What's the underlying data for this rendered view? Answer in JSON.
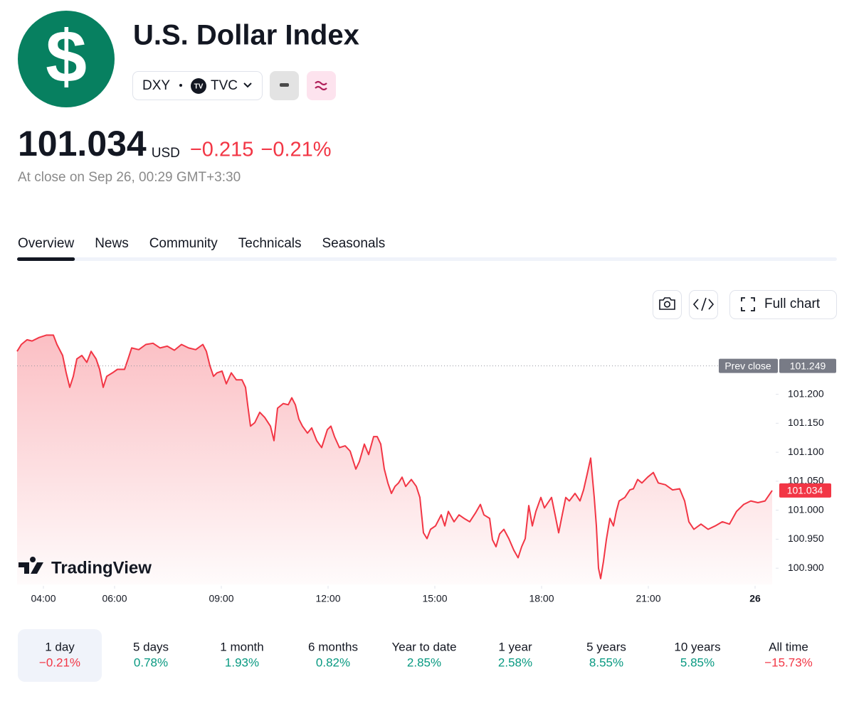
{
  "header": {
    "logo": "$",
    "title": "U.S. Dollar Index",
    "symbol": "DXY",
    "exchange": "TVC"
  },
  "quote": {
    "price": "101.034",
    "currency": "USD",
    "change": "−0.215",
    "change_percent": "−0.21%",
    "status": "At close on Sep 26, 00:29 GMT+3:30"
  },
  "tabs": [
    "Overview",
    "News",
    "Community",
    "Technicals",
    "Seasonals"
  ],
  "active_tab": 0,
  "toolbar": {
    "full_chart": "Full chart"
  },
  "chart_data": {
    "type": "line",
    "color": "#f23645",
    "watermark": "TradingView",
    "prev_close_label": "Prev close",
    "prev_close": 101.249,
    "xlim": [
      3.26,
      24.54
    ],
    "ylim": [
      100.872,
      101.316
    ],
    "xticks": [
      {
        "value": 4,
        "label": "04:00"
      },
      {
        "value": 6,
        "label": "06:00"
      },
      {
        "value": 9,
        "label": "09:00"
      },
      {
        "value": 12,
        "label": "12:00"
      },
      {
        "value": 15,
        "label": "15:00"
      },
      {
        "value": 18,
        "label": "18:00"
      },
      {
        "value": 21,
        "label": "21:00"
      },
      {
        "value": 24,
        "label": "26"
      }
    ],
    "yticks": [
      {
        "value": 101.2,
        "label": "101.200"
      },
      {
        "value": 101.15,
        "label": "101.150"
      },
      {
        "value": 101.1,
        "label": "101.100"
      },
      {
        "value": 101.05,
        "label": "101.050"
      },
      {
        "value": 101.0,
        "label": "101.000"
      },
      {
        "value": 100.95,
        "label": "100.950"
      },
      {
        "value": 100.9,
        "label": "100.900"
      }
    ],
    "x": [
      3.26,
      3.38,
      3.54,
      3.68,
      3.88,
      4.08,
      4.28,
      4.38,
      4.54,
      4.64,
      4.74,
      4.84,
      4.94,
      5.08,
      5.22,
      5.34,
      5.48,
      5.58,
      5.68,
      5.78,
      5.94,
      6.08,
      6.28,
      6.38,
      6.48,
      6.68,
      6.88,
      7.08,
      7.28,
      7.48,
      7.68,
      7.88,
      8.08,
      8.28,
      8.48,
      8.58,
      8.68,
      8.78,
      8.88,
      9.02,
      9.14,
      9.28,
      9.42,
      9.58,
      9.68,
      9.74,
      9.82,
      9.94,
      10.08,
      10.22,
      10.38,
      10.48,
      10.58,
      10.74,
      10.88,
      10.98,
      11.08,
      11.18,
      11.28,
      11.42,
      11.54,
      11.68,
      11.82,
      11.98,
      12.08,
      12.18,
      12.32,
      12.48,
      12.62,
      12.78,
      12.88,
      13.02,
      13.14,
      13.28,
      13.38,
      13.48,
      13.58,
      13.68,
      13.78,
      13.88,
      13.98,
      14.08,
      14.18,
      14.34,
      14.48,
      14.58,
      14.68,
      14.78,
      14.88,
      15.02,
      15.18,
      15.28,
      15.38,
      15.54,
      15.68,
      15.82,
      15.98,
      16.14,
      16.28,
      16.38,
      16.54,
      16.62,
      16.72,
      16.82,
      16.94,
      17.08,
      17.22,
      17.34,
      17.44,
      17.54,
      17.64,
      17.74,
      17.84,
      17.98,
      18.08,
      18.18,
      18.28,
      18.38,
      18.48,
      18.58,
      18.68,
      18.78,
      18.94,
      19.08,
      19.18,
      19.28,
      19.38,
      19.48,
      19.54,
      19.6,
      19.66,
      19.74,
      19.82,
      19.92,
      20.02,
      20.1,
      20.18,
      20.34,
      20.48,
      20.58,
      20.7,
      20.82,
      20.98,
      21.14,
      21.28,
      21.48,
      21.68,
      21.88,
      22.02,
      22.14,
      22.28,
      22.48,
      22.68,
      22.88,
      23.08,
      23.28,
      23.48,
      23.68,
      23.88,
      24.08,
      24.28,
      24.48
    ],
    "values": [
      101.274,
      101.286,
      101.294,
      101.292,
      101.298,
      101.302,
      101.302,
      101.286,
      101.267,
      101.237,
      101.212,
      101.231,
      101.261,
      101.267,
      101.255,
      101.274,
      101.261,
      101.243,
      101.212,
      101.231,
      101.237,
      101.243,
      101.243,
      101.261,
      101.28,
      101.277,
      101.286,
      101.288,
      101.28,
      101.283,
      101.276,
      101.286,
      101.28,
      101.277,
      101.286,
      101.274,
      101.249,
      101.231,
      101.237,
      101.24,
      101.218,
      101.237,
      101.225,
      101.225,
      101.212,
      101.182,
      101.145,
      101.151,
      101.169,
      101.16,
      101.145,
      101.12,
      101.176,
      101.184,
      101.182,
      101.194,
      101.182,
      101.157,
      101.145,
      101.133,
      101.142,
      101.12,
      101.108,
      101.139,
      101.145,
      101.127,
      101.108,
      101.111,
      101.102,
      101.071,
      101.084,
      101.114,
      101.096,
      101.127,
      101.127,
      101.114,
      101.071,
      101.047,
      101.029,
      101.041,
      101.047,
      101.057,
      101.041,
      101.053,
      101.041,
      101.022,
      100.961,
      100.951,
      100.967,
      100.973,
      100.992,
      100.973,
      100.998,
      100.98,
      100.992,
      100.986,
      100.98,
      100.995,
      101.01,
      100.992,
      100.986,
      100.949,
      100.937,
      100.959,
      100.967,
      100.951,
      100.931,
      100.918,
      100.937,
      100.951,
      101.008,
      100.973,
      100.998,
      101.022,
      101.004,
      101.013,
      101.022,
      100.992,
      100.961,
      100.992,
      101.022,
      101.016,
      101.029,
      101.016,
      101.035,
      101.062,
      101.09,
      101.022,
      100.973,
      100.9,
      100.882,
      100.912,
      100.949,
      100.986,
      100.973,
      100.998,
      101.016,
      101.022,
      101.035,
      101.037,
      101.053,
      101.047,
      101.057,
      101.065,
      101.047,
      101.044,
      101.035,
      101.037,
      101.016,
      100.98,
      100.967,
      100.976,
      100.967,
      100.973,
      100.98,
      100.976,
      100.998,
      101.01,
      101.016,
      101.013,
      101.016,
      101.034
    ]
  },
  "ranges": [
    {
      "label": "1 day",
      "change": "−0.21%"
    },
    {
      "label": "5 days",
      "change": "0.78%"
    },
    {
      "label": "1 month",
      "change": "1.93%"
    },
    {
      "label": "6 months",
      "change": "0.82%"
    },
    {
      "label": "Year to date",
      "change": "2.85%"
    },
    {
      "label": "1 year",
      "change": "2.58%"
    },
    {
      "label": "5 years",
      "change": "8.55%"
    },
    {
      "label": "10 years",
      "change": "5.85%"
    },
    {
      "label": "All time",
      "change": "−15.73%"
    }
  ],
  "active_range": 0
}
